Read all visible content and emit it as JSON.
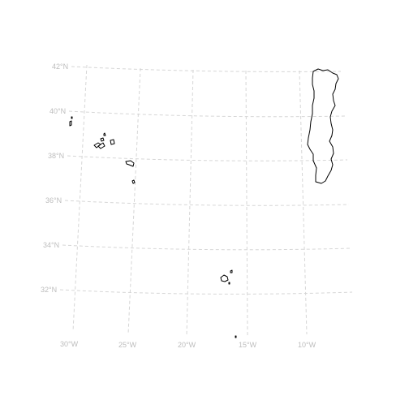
{
  "map": {
    "lat_labels": [
      {
        "id": "lat-42",
        "text": "42°N"
      },
      {
        "id": "lat-40",
        "text": "40°N"
      },
      {
        "id": "lat-38",
        "text": "38°N"
      },
      {
        "id": "lat-36",
        "text": "36°N"
      },
      {
        "id": "lat-34",
        "text": "34°N"
      },
      {
        "id": "lat-32",
        "text": "32°N"
      }
    ],
    "lon_labels": [
      {
        "id": "lon-30",
        "text": "30°W"
      },
      {
        "id": "lon-25",
        "text": "25°W"
      },
      {
        "id": "lon-20",
        "text": "20°W"
      },
      {
        "id": "lon-15",
        "text": "15°W"
      },
      {
        "id": "lon-10",
        "text": "10°W"
      }
    ],
    "features": [
      "portugal-mainland",
      "azores-islands",
      "madeira-islands",
      "selvagens-islands"
    ],
    "colors": {
      "graticule": "#d6d6d6",
      "label": "#bdbdbd",
      "coastline": "#000000"
    }
  }
}
